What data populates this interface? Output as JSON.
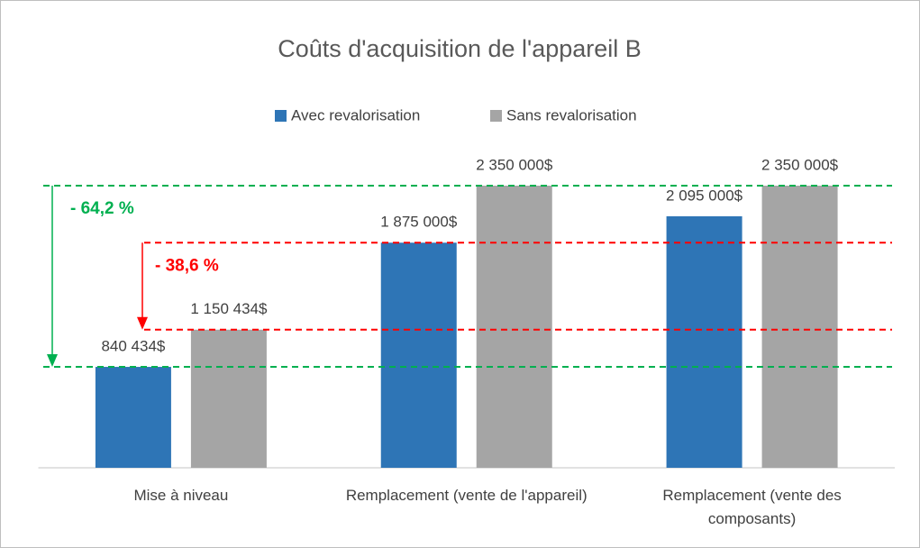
{
  "chart_data": {
    "type": "bar",
    "title": "Coûts d'acquisition de l'appareil B",
    "categories": [
      "Mise à niveau",
      "Remplacement (vente de l'appareil)",
      "Remplacement (vente des composants)"
    ],
    "series": [
      {
        "name": "Avec revalorisation",
        "color": "#2e75b6",
        "values": [
          840434,
          1875000,
          2095000
        ],
        "value_labels": [
          "840 434$",
          "1 875 000$",
          "2 095 000$"
        ]
      },
      {
        "name": "Sans revalorisation",
        "color": "#a5a5a5",
        "values": [
          1150434,
          2350000,
          2350000
        ],
        "value_labels": [
          "1 150 434$",
          "2 350 000$",
          "2 350 000$"
        ]
      }
    ],
    "ylim": [
      0,
      2500000
    ],
    "legend": "top",
    "annotations": [
      {
        "label": "- 64,2 %",
        "value": -64.2,
        "color": "#00b050"
      },
      {
        "label": "- 38,6 %",
        "value": -38.6,
        "color": "#ff0000"
      }
    ]
  }
}
